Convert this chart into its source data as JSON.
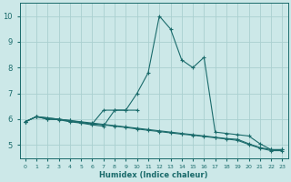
{
  "xlabel": "Humidex (Indice chaleur)",
  "xlim": [
    -0.5,
    23.5
  ],
  "ylim": [
    4.5,
    10.5
  ],
  "xticks": [
    0,
    1,
    2,
    3,
    4,
    5,
    6,
    7,
    8,
    9,
    10,
    11,
    12,
    13,
    14,
    15,
    16,
    17,
    18,
    19,
    20,
    21,
    22,
    23
  ],
  "yticks": [
    5,
    6,
    7,
    8,
    9,
    10
  ],
  "bg_color": "#cce8e8",
  "grid_color": "#aad0d0",
  "line_color": "#1a6b6b",
  "lines": [
    {
      "x": [
        0,
        1,
        2,
        3,
        4,
        5,
        6,
        7,
        8,
        9,
        10,
        11,
        12,
        13,
        14,
        15,
        16,
        17,
        18,
        19,
        20,
        21,
        22,
        23
      ],
      "y": [
        5.9,
        6.1,
        6.05,
        6.0,
        5.95,
        5.9,
        5.85,
        5.8,
        5.75,
        5.7,
        5.65,
        5.6,
        5.55,
        5.5,
        5.45,
        5.4,
        5.35,
        5.3,
        5.25,
        5.22,
        5.05,
        4.9,
        4.82,
        4.82
      ]
    },
    {
      "x": [
        0,
        1,
        2,
        3,
        4,
        5,
        6,
        7,
        8,
        9,
        10,
        11,
        12,
        13,
        14,
        15,
        16,
        17,
        18,
        19,
        20,
        21,
        22,
        23
      ],
      "y": [
        5.9,
        6.1,
        6.05,
        6.0,
        5.95,
        5.88,
        5.82,
        5.78,
        5.73,
        5.68,
        5.62,
        5.57,
        5.52,
        5.47,
        5.42,
        5.38,
        5.33,
        5.28,
        5.23,
        5.18,
        5.02,
        4.88,
        4.78,
        4.78
      ]
    },
    {
      "x": [
        0,
        1,
        2,
        3,
        4,
        5,
        6,
        7,
        8,
        9,
        10,
        11,
        12,
        13,
        14,
        15,
        16,
        17,
        18,
        19,
        20,
        21,
        22,
        23
      ],
      "y": [
        5.9,
        6.1,
        6.0,
        6.0,
        5.92,
        5.86,
        5.82,
        6.35,
        6.35,
        6.35,
        7.0,
        7.8,
        10.0,
        9.5,
        8.3,
        8.0,
        8.4,
        5.5,
        5.45,
        5.4,
        5.35,
        5.05,
        4.82,
        4.82
      ]
    },
    {
      "x": [
        0,
        1,
        2,
        3,
        4,
        5,
        6,
        7,
        8,
        9,
        10
      ],
      "y": [
        5.9,
        6.1,
        6.0,
        5.98,
        5.9,
        5.85,
        5.78,
        5.73,
        6.35,
        6.35,
        6.35
      ]
    }
  ]
}
